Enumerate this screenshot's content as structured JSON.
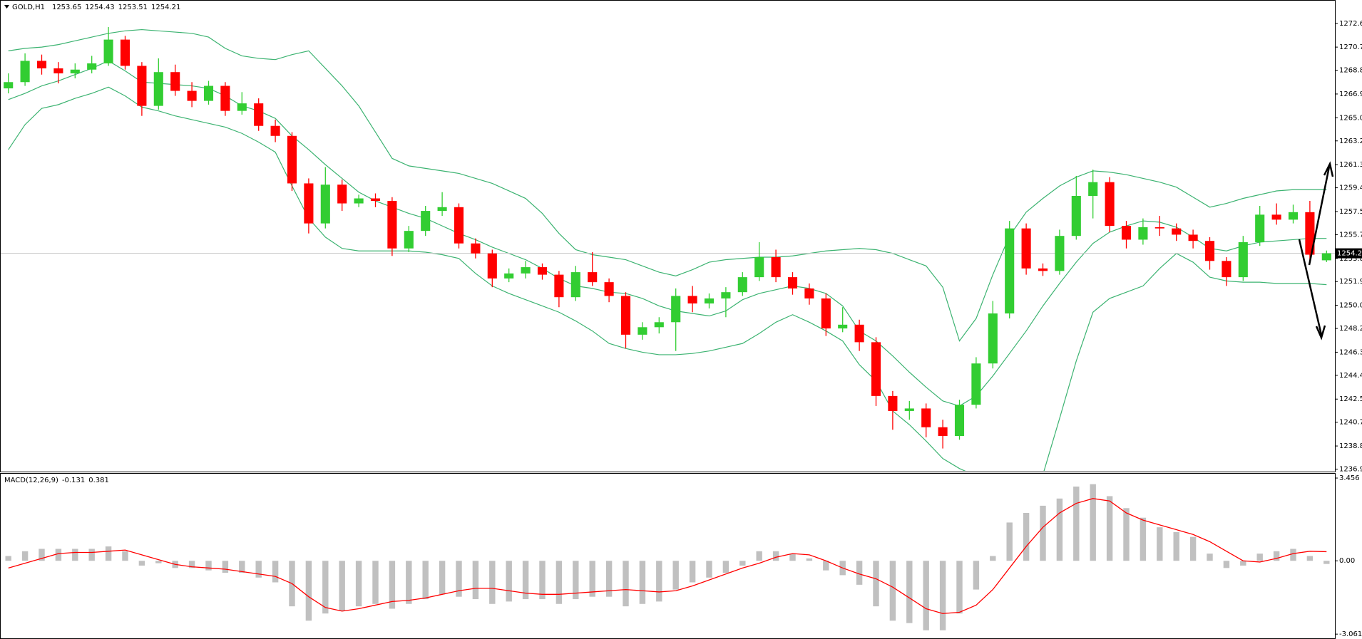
{
  "chart_data": [
    {
      "type": "candlestick",
      "label": "GOLD,H1",
      "up_color": "#32cd32",
      "down_color": "#ff0000",
      "last_line_color": "#c8c8c8",
      "ylim": [
        1236.81,
        1274.41
      ],
      "yticks": [
        {
          "value": 1272.6,
          "label": "1272.60"
        },
        {
          "value": 1270.7,
          "label": "1270.70"
        },
        1268.85,
        1266.95,
        1265.05,
        {
          "value": 1263.2,
          "label": "1263.20"
        },
        {
          "value": 1261.3,
          "label": "1261.30"
        },
        1259.45,
        1257.55,
        {
          "value": 1255.7,
          "label": "1255.70"
        },
        {
          "value": 1253.8,
          "label": "1253.80"
        },
        1251.95,
        1250.05,
        {
          "value": 1248.2,
          "label": "1248.20"
        },
        {
          "value": 1246.3,
          "label": "1246.30"
        },
        1244.45,
        1242.55,
        {
          "value": 1240.7,
          "label": "1240.70"
        },
        {
          "value": 1238.8,
          "label": "1238.80"
        },
        1236.95
      ],
      "ohlc": [
        [
          1267.4,
          1268.6,
          1267.0,
          1267.9
        ],
        [
          1267.9,
          1270.2,
          1267.6,
          1269.6
        ],
        [
          1269.6,
          1270.1,
          1268.5,
          1269.0
        ],
        [
          1269.0,
          1269.5,
          1267.8,
          1268.6
        ],
        [
          1268.6,
          1269.4,
          1268.2,
          1268.9
        ],
        [
          1268.9,
          1270.0,
          1268.6,
          1269.4
        ],
        [
          1269.4,
          1272.3,
          1269.2,
          1271.3
        ],
        [
          1271.3,
          1271.6,
          1268.9,
          1269.2
        ],
        [
          1269.2,
          1269.5,
          1265.2,
          1266.0
        ],
        [
          1266.0,
          1269.8,
          1265.7,
          1268.7
        ],
        [
          1268.7,
          1269.3,
          1266.8,
          1267.2
        ],
        [
          1267.2,
          1267.9,
          1265.9,
          1266.4
        ],
        [
          1266.4,
          1268.0,
          1266.1,
          1267.6
        ],
        [
          1267.6,
          1267.9,
          1265.2,
          1265.6
        ],
        [
          1265.6,
          1267.1,
          1265.3,
          1266.2
        ],
        [
          1266.2,
          1266.6,
          1264.0,
          1264.4
        ],
        [
          1264.4,
          1264.9,
          1263.1,
          1263.6
        ],
        [
          1263.6,
          1263.9,
          1259.2,
          1259.8
        ],
        [
          1259.8,
          1260.2,
          1255.8,
          1256.6
        ],
        [
          1256.6,
          1261.1,
          1256.2,
          1259.7
        ],
        [
          1259.7,
          1260.1,
          1257.6,
          1258.2
        ],
        [
          1258.2,
          1258.9,
          1257.9,
          1258.6
        ],
        [
          1258.6,
          1259.0,
          1257.9,
          1258.4
        ],
        [
          1258.4,
          1258.7,
          1254.0,
          1254.6
        ],
        [
          1254.6,
          1256.4,
          1254.3,
          1256.0
        ],
        [
          1256.0,
          1258.0,
          1255.6,
          1257.6
        ],
        [
          1257.6,
          1259.1,
          1257.2,
          1257.9
        ],
        [
          1257.9,
          1258.2,
          1254.6,
          1255.0
        ],
        [
          1255.0,
          1255.4,
          1253.8,
          1254.2
        ],
        [
          1254.2,
          1254.5,
          1251.5,
          1252.2
        ],
        [
          1252.2,
          1253.0,
          1251.9,
          1252.6
        ],
        [
          1252.6,
          1253.6,
          1252.2,
          1253.1
        ],
        [
          1253.1,
          1253.4,
          1252.1,
          1252.5
        ],
        [
          1252.5,
          1252.8,
          1249.9,
          1250.7
        ],
        [
          1250.7,
          1253.2,
          1250.4,
          1252.7
        ],
        [
          1252.7,
          1254.3,
          1251.6,
          1251.9
        ],
        [
          1251.9,
          1252.2,
          1250.3,
          1250.8
        ],
        [
          1250.8,
          1251.1,
          1246.6,
          1247.7
        ],
        [
          1247.7,
          1248.7,
          1247.3,
          1248.3
        ],
        [
          1248.3,
          1249.1,
          1247.8,
          1248.7
        ],
        [
          1248.7,
          1251.4,
          1246.4,
          1250.8
        ],
        [
          1250.8,
          1251.6,
          1249.5,
          1250.2
        ],
        [
          1250.2,
          1251.0,
          1249.8,
          1250.6
        ],
        [
          1250.6,
          1251.5,
          1249.1,
          1251.1
        ],
        [
          1251.1,
          1252.7,
          1250.8,
          1252.3
        ],
        [
          1252.3,
          1255.1,
          1252.0,
          1253.9
        ],
        [
          1253.9,
          1254.5,
          1251.9,
          1252.3
        ],
        [
          1252.3,
          1252.7,
          1250.9,
          1251.4
        ],
        [
          1251.4,
          1251.8,
          1250.1,
          1250.6
        ],
        [
          1250.6,
          1251.0,
          1247.6,
          1248.2
        ],
        [
          1248.2,
          1249.9,
          1247.9,
          1248.5
        ],
        [
          1248.5,
          1248.9,
          1246.4,
          1247.1
        ],
        [
          1247.1,
          1247.5,
          1242.0,
          1242.8
        ],
        [
          1242.8,
          1243.2,
          1240.1,
          1241.6
        ],
        [
          1241.6,
          1242.4,
          1240.9,
          1241.8
        ],
        [
          1241.8,
          1242.2,
          1239.5,
          1240.3
        ],
        [
          1240.3,
          1240.9,
          1238.6,
          1239.6
        ],
        [
          1239.6,
          1242.5,
          1239.3,
          1242.1
        ],
        [
          1242.1,
          1245.9,
          1241.8,
          1245.4
        ],
        [
          1245.4,
          1250.4,
          1245.0,
          1249.4
        ],
        [
          1249.4,
          1256.8,
          1249.0,
          1256.2
        ],
        [
          1256.2,
          1256.6,
          1252.5,
          1253.0
        ],
        [
          1253.0,
          1253.4,
          1252.4,
          1252.8
        ],
        [
          1252.8,
          1256.1,
          1252.5,
          1255.6
        ],
        [
          1255.6,
          1260.4,
          1255.3,
          1258.8
        ],
        [
          1258.8,
          1260.9,
          1257.0,
          1259.9
        ],
        [
          1259.9,
          1260.3,
          1255.9,
          1256.4
        ],
        [
          1256.4,
          1256.8,
          1254.6,
          1255.3
        ],
        [
          1255.3,
          1257.0,
          1254.9,
          1256.3
        ],
        [
          1256.3,
          1257.2,
          1255.6,
          1256.2
        ],
        [
          1256.2,
          1256.6,
          1255.2,
          1255.7
        ],
        [
          1255.7,
          1256.1,
          1254.6,
          1255.2
        ],
        [
          1255.2,
          1255.5,
          1252.9,
          1253.6
        ],
        [
          1253.6,
          1253.9,
          1251.6,
          1252.3
        ],
        [
          1252.3,
          1255.6,
          1252.0,
          1255.1
        ],
        [
          1255.1,
          1258.0,
          1254.8,
          1257.3
        ],
        [
          1257.3,
          1258.2,
          1256.5,
          1256.9
        ],
        [
          1256.9,
          1258.1,
          1256.6,
          1257.5
        ],
        [
          1257.5,
          1258.4,
          1253.6,
          1254.1
        ],
        [
          1253.65,
          1254.43,
          1253.51,
          1254.21
        ]
      ],
      "bands": {
        "color": "#3cb371",
        "upper": [
          1270.4,
          1270.6,
          1270.7,
          1270.9,
          1271.2,
          1271.5,
          1271.8,
          1272.0,
          1272.1,
          1272.0,
          1271.9,
          1271.8,
          1271.5,
          1270.6,
          1270.0,
          1269.8,
          1269.7,
          1270.1,
          1270.4,
          1269.0,
          1267.6,
          1266.0,
          1263.9,
          1261.8,
          1261.2,
          1261.0,
          1260.8,
          1260.6,
          1260.2,
          1259.8,
          1259.2,
          1258.6,
          1257.4,
          1255.8,
          1254.5,
          1254.1,
          1253.9,
          1253.7,
          1253.2,
          1252.7,
          1252.4,
          1252.9,
          1253.5,
          1253.7,
          1253.8,
          1253.9,
          1253.9,
          1254.0,
          1254.2,
          1254.4,
          1254.5,
          1254.6,
          1254.5,
          1254.2,
          1253.7,
          1253.2,
          1251.5,
          1247.2,
          1249.0,
          1252.5,
          1255.6,
          1257.5,
          1258.6,
          1259.6,
          1260.3,
          1260.8,
          1260.7,
          1260.5,
          1260.2,
          1259.9,
          1259.5,
          1258.7,
          1257.9,
          1258.2,
          1258.6,
          1258.9,
          1259.2,
          1259.3,
          1259.3,
          1259.3
        ],
        "middle": [
          1266.5,
          1267.0,
          1267.6,
          1268.0,
          1268.5,
          1269.0,
          1269.6,
          1268.8,
          1267.9,
          1267.8,
          1267.7,
          1267.6,
          1267.4,
          1266.8,
          1266.0,
          1265.6,
          1265.0,
          1263.6,
          1262.5,
          1261.3,
          1260.2,
          1259.1,
          1258.4,
          1257.9,
          1257.4,
          1257.0,
          1256.4,
          1255.8,
          1255.3,
          1254.7,
          1254.2,
          1253.7,
          1253.0,
          1252.2,
          1251.6,
          1251.4,
          1251.1,
          1251.0,
          1250.6,
          1250.0,
          1249.6,
          1249.4,
          1249.2,
          1249.6,
          1250.5,
          1251.0,
          1251.3,
          1251.6,
          1251.4,
          1251.0,
          1250.0,
          1248.0,
          1247.2,
          1246.0,
          1244.7,
          1243.5,
          1242.4,
          1242.0,
          1242.8,
          1244.4,
          1246.2,
          1248.0,
          1250.0,
          1251.8,
          1253.5,
          1255.0,
          1255.9,
          1256.4,
          1256.8,
          1256.7,
          1256.3,
          1255.5,
          1254.6,
          1254.4,
          1254.8,
          1255.1,
          1255.2,
          1255.3,
          1255.4,
          1255.4
        ],
        "lower": [
          1262.5,
          1264.5,
          1265.8,
          1266.1,
          1266.6,
          1267.0,
          1267.5,
          1266.8,
          1265.9,
          1265.6,
          1265.2,
          1264.9,
          1264.6,
          1264.3,
          1263.8,
          1263.1,
          1262.3,
          1259.6,
          1257.0,
          1255.5,
          1254.6,
          1254.4,
          1254.4,
          1254.4,
          1254.4,
          1254.3,
          1254.1,
          1253.8,
          1252.6,
          1251.6,
          1251.0,
          1250.5,
          1250.0,
          1249.5,
          1248.8,
          1248.0,
          1247.0,
          1246.6,
          1246.3,
          1246.1,
          1246.1,
          1246.2,
          1246.4,
          1246.7,
          1247.0,
          1247.8,
          1248.7,
          1249.3,
          1248.7,
          1248.0,
          1247.2,
          1245.3,
          1244.0,
          1241.6,
          1240.5,
          1239.2,
          1237.8,
          1237.0,
          1236.4,
          1235.9,
          1235.7,
          1235.8,
          1236.5,
          1241.0,
          1245.6,
          1249.5,
          1250.6,
          1251.1,
          1251.6,
          1253.0,
          1254.2,
          1253.5,
          1252.3,
          1252.0,
          1251.9,
          1251.9,
          1251.8,
          1251.8,
          1251.8,
          1251.7
        ]
      }
    },
    {
      "type": "macd",
      "label": "MACD(12,26,9)",
      "ylim": [
        -3.205,
        3.636
      ],
      "yticks": [
        3.456,
        {
          "value": 0,
          "label": "0.00"
        },
        -3.061
      ],
      "histogram": {
        "color": "#c0c0c0",
        "values": [
          0.2,
          0.4,
          0.5,
          0.5,
          0.5,
          0.5,
          0.6,
          0.4,
          -0.2,
          -0.1,
          -0.3,
          -0.3,
          -0.4,
          -0.5,
          -0.5,
          -0.7,
          -0.9,
          -1.9,
          -2.5,
          -2.2,
          -2.1,
          -1.9,
          -1.8,
          -2.0,
          -1.8,
          -1.6,
          -1.4,
          -1.5,
          -1.6,
          -1.8,
          -1.7,
          -1.6,
          -1.6,
          -1.8,
          -1.6,
          -1.5,
          -1.5,
          -1.9,
          -1.8,
          -1.7,
          -1.2,
          -0.9,
          -0.7,
          -0.5,
          -0.2,
          0.4,
          0.4,
          0.3,
          0.1,
          -0.4,
          -0.6,
          -1.0,
          -1.9,
          -2.5,
          -2.6,
          -2.9,
          -2.9,
          -2.2,
          -1.2,
          0.2,
          1.6,
          2.0,
          2.3,
          2.6,
          3.1,
          3.2,
          2.7,
          2.2,
          1.8,
          1.4,
          1.2,
          1.0,
          0.3,
          -0.3,
          -0.2,
          0.3,
          0.4,
          0.5,
          0.2,
          -0.131
        ]
      },
      "signal": {
        "color": "#ff0000",
        "values": [
          -0.3,
          -0.1,
          0.1,
          0.3,
          0.35,
          0.35,
          0.4,
          0.45,
          0.25,
          0.05,
          -0.15,
          -0.25,
          -0.3,
          -0.35,
          -0.45,
          -0.55,
          -0.65,
          -0.95,
          -1.5,
          -1.95,
          -2.1,
          -2.0,
          -1.85,
          -1.7,
          -1.65,
          -1.55,
          -1.4,
          -1.25,
          -1.15,
          -1.15,
          -1.25,
          -1.35,
          -1.4,
          -1.4,
          -1.35,
          -1.3,
          -1.25,
          -1.2,
          -1.25,
          -1.3,
          -1.25,
          -1.05,
          -0.8,
          -0.55,
          -0.3,
          -0.1,
          0.15,
          0.3,
          0.25,
          0.0,
          -0.3,
          -0.55,
          -0.75,
          -1.1,
          -1.55,
          -2.0,
          -2.2,
          -2.15,
          -1.85,
          -1.2,
          -0.3,
          0.6,
          1.4,
          2.0,
          2.4,
          2.6,
          2.5,
          2.0,
          1.7,
          1.5,
          1.3,
          1.1,
          0.8,
          0.4,
          0.0,
          -0.05,
          0.1,
          0.3,
          0.4,
          0.381
        ]
      }
    }
  ]
}
